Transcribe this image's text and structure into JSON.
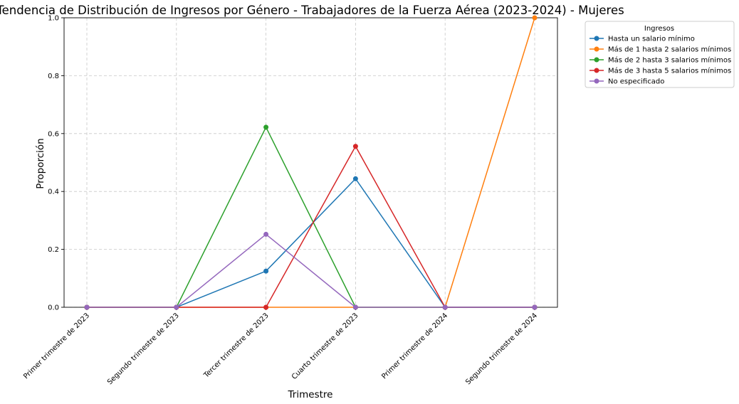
{
  "chart_data": {
    "type": "line",
    "title": "Tendencia de Distribución de Ingresos por Género - Trabajadores de la Fuerza Aérea (2023-2024) - Mujeres",
    "xlabel": "Trimestre",
    "ylabel": "Proporción",
    "ylim": [
      0,
      1
    ],
    "yticks": [
      "0.0",
      "0.2",
      "0.4",
      "0.6",
      "0.8",
      "1.0"
    ],
    "grid": true,
    "legend_title": "Ingresos",
    "legend_position": "outside-top-right",
    "categories": [
      "Primer trimestre de 2023",
      "Segundo trimestre de 2023",
      "Tercer trimestre de 2023",
      "Cuarto trimestre de 2023",
      "Primer trimestre de 2024",
      "Segundo trimestre de 2024"
    ],
    "series": [
      {
        "name": "Hasta un salario mínimo",
        "color": "#1f77b4",
        "values": [
          0,
          0,
          0.125,
          0.444,
          0,
          0
        ]
      },
      {
        "name": "Más de 1 hasta 2 salarios mínimos",
        "color": "#ff7f0e",
        "values": [
          0,
          0,
          0,
          0,
          0,
          1.0
        ]
      },
      {
        "name": "Más de 2 hasta 3 salarios mínimos",
        "color": "#2ca02c",
        "values": [
          0,
          0,
          0.622,
          0,
          0,
          0
        ]
      },
      {
        "name": "Más de 3 hasta 5 salarios mínimos",
        "color": "#d62728",
        "values": [
          0,
          0,
          0,
          0.556,
          0,
          0
        ]
      },
      {
        "name": "No especificado",
        "color": "#9467bd",
        "values": [
          0,
          0,
          0.252,
          0,
          0,
          0
        ]
      }
    ]
  }
}
